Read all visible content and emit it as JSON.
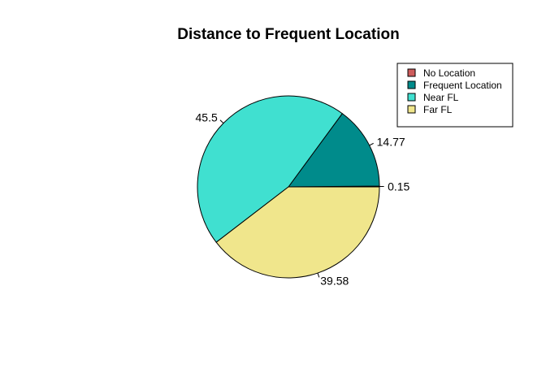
{
  "chart_data": {
    "type": "pie",
    "title": "Distance to Frequent Location",
    "categories": [
      "No Location",
      "Frequent Location",
      "Near FL",
      "Far FL"
    ],
    "values": [
      0.15,
      14.77,
      45.5,
      39.58
    ],
    "labels": [
      "0.15",
      "14.77",
      "45.5",
      "39.58"
    ],
    "colors": [
      "#cd5c5c",
      "#008b8b",
      "#40e0d0",
      "#f0e68c"
    ],
    "start_angle_deg": 0,
    "direction": "counterclockwise",
    "legend": {
      "position": "top-right",
      "entries": [
        "No Location",
        "Frequent Location",
        "Near FL",
        "Far FL"
      ]
    }
  }
}
